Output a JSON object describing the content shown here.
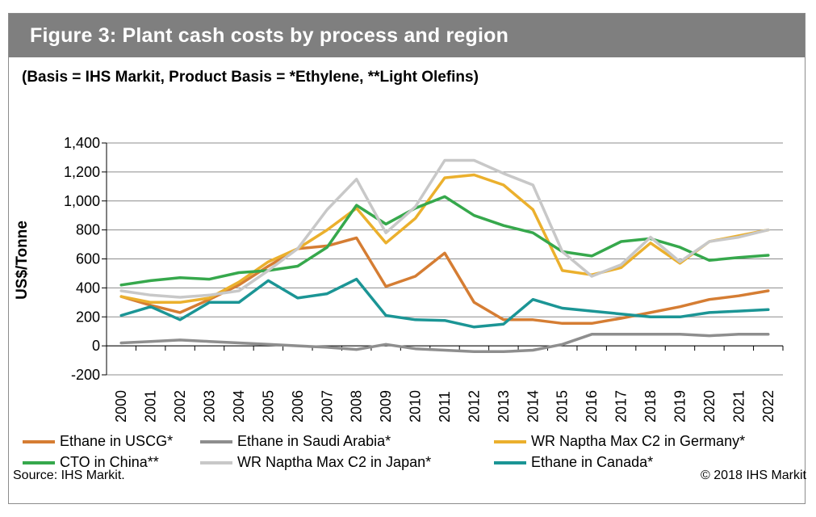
{
  "figure": {
    "title": "Figure 3: Plant cash costs by process and region",
    "subtitle": "(Basis = IHS Markit,  Product Basis = *Ethylene, **Light Olefins)",
    "source": "Source: IHS Markit.",
    "copyright": "© 2018 IHS Markit"
  },
  "chart_data": {
    "type": "line",
    "title": "Figure 3: Plant cash costs by process and region",
    "ylabel": "US$/Tonne",
    "xlabel": "",
    "ylim": [
      -200,
      1400
    ],
    "yticks": [
      -200,
      0,
      200,
      400,
      600,
      800,
      1000,
      1200,
      1400
    ],
    "ytick_labels": [
      "-200",
      "0",
      "200",
      "400",
      "600",
      "800",
      "1,000",
      "1,200",
      "1,400"
    ],
    "grid": true,
    "legend_placement": "bottom",
    "x": [
      "2000",
      "2001",
      "2002",
      "2003",
      "2004",
      "2005",
      "2006",
      "2007",
      "2008",
      "2009",
      "2010",
      "2011",
      "2012",
      "2013",
      "2014",
      "2015",
      "2016",
      "2017",
      "2018",
      "2019",
      "2020",
      "2021",
      "2022"
    ],
    "series": [
      {
        "name": "Ethane in USCG*",
        "color": "#d57d33",
        "values": [
          340,
          280,
          230,
          320,
          420,
          550,
          670,
          690,
          745,
          410,
          480,
          640,
          300,
          180,
          180,
          155,
          155,
          190,
          230,
          270,
          320,
          345,
          380
        ]
      },
      {
        "name": "Ethane in Saudi Arabia*",
        "color": "#8e8e8e",
        "values": [
          20,
          30,
          40,
          30,
          20,
          10,
          0,
          -10,
          -25,
          10,
          -20,
          -30,
          -40,
          -40,
          -30,
          10,
          80,
          80,
          80,
          80,
          70,
          80,
          80
        ]
      },
      {
        "name": "WR Naptha Max C2 in Germany*",
        "color": "#ebb02d",
        "values": [
          340,
          300,
          300,
          330,
          440,
          580,
          670,
          800,
          950,
          710,
          880,
          1160,
          1180,
          1110,
          940,
          520,
          490,
          540,
          710,
          570,
          720,
          760,
          800
        ]
      },
      {
        "name": "CTO in China**",
        "color": "#36a84c",
        "values": [
          420,
          450,
          470,
          460,
          505,
          520,
          550,
          680,
          970,
          840,
          950,
          1030,
          900,
          830,
          780,
          650,
          620,
          720,
          740,
          680,
          590,
          610,
          625
        ]
      },
      {
        "name": "WR Naptha Max C2 in Japan*",
        "color": "#c8c8c8",
        "values": [
          380,
          350,
          335,
          350,
          380,
          520,
          670,
          940,
          1150,
          780,
          960,
          1280,
          1280,
          1190,
          1110,
          650,
          480,
          560,
          750,
          580,
          720,
          750,
          800
        ]
      },
      {
        "name": "Ethane in Canada*",
        "color": "#1b9595",
        "values": [
          210,
          270,
          180,
          300,
          300,
          450,
          330,
          360,
          460,
          210,
          180,
          175,
          130,
          150,
          320,
          260,
          240,
          220,
          200,
          200,
          230,
          240,
          250
        ]
      }
    ]
  }
}
